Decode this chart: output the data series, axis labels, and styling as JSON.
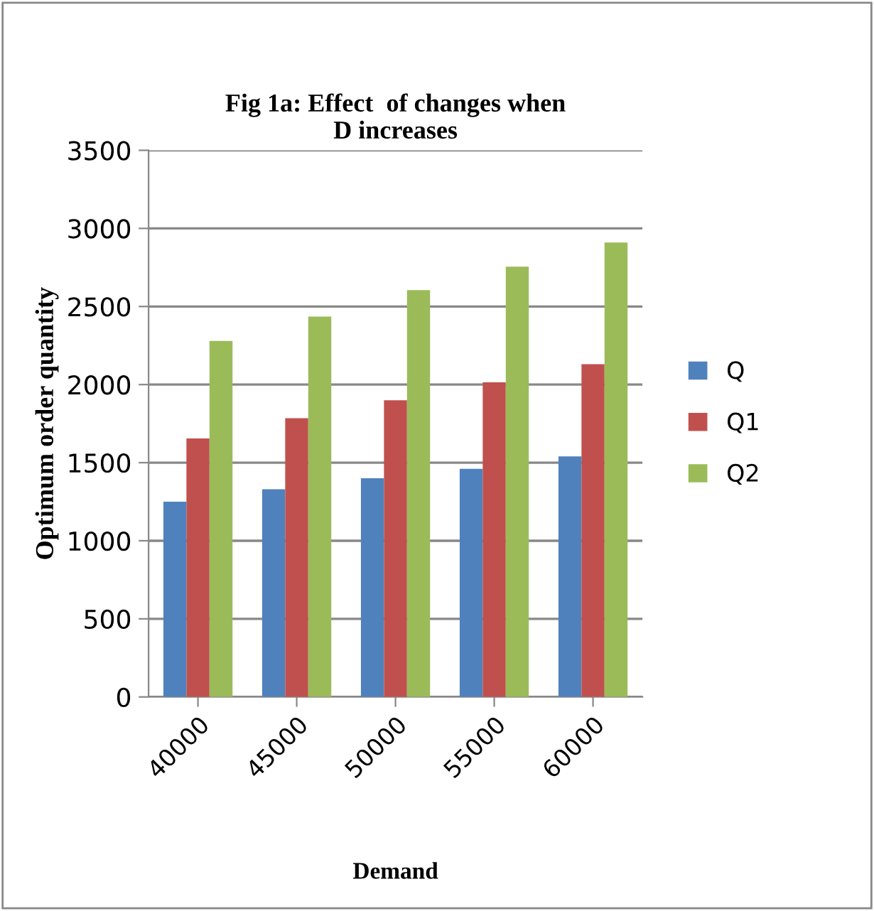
{
  "chart_data": {
    "type": "bar",
    "title": "Fig 1a: Effect  of changes when\nD increases",
    "xlabel": "Demand",
    "ylabel": "Optimum order quantity",
    "categories": [
      "40000",
      "45000",
      "50000",
      "55000",
      "60000"
    ],
    "series": [
      {
        "name": "Q",
        "color": "#4f81bd",
        "values": [
          1250,
          1330,
          1400,
          1460,
          1540
        ]
      },
      {
        "name": "Q1",
        "color": "#c0504d",
        "values": [
          1655,
          1785,
          1900,
          2015,
          2130
        ]
      },
      {
        "name": "Q2",
        "color": "#9bbb59",
        "values": [
          2280,
          2435,
          2605,
          2755,
          2910
        ]
      }
    ],
    "ylim": [
      0,
      3500
    ],
    "yticks": [
      0,
      500,
      1000,
      1500,
      2000,
      2500,
      3000,
      3500
    ],
    "grid": "y",
    "legend": "right"
  }
}
